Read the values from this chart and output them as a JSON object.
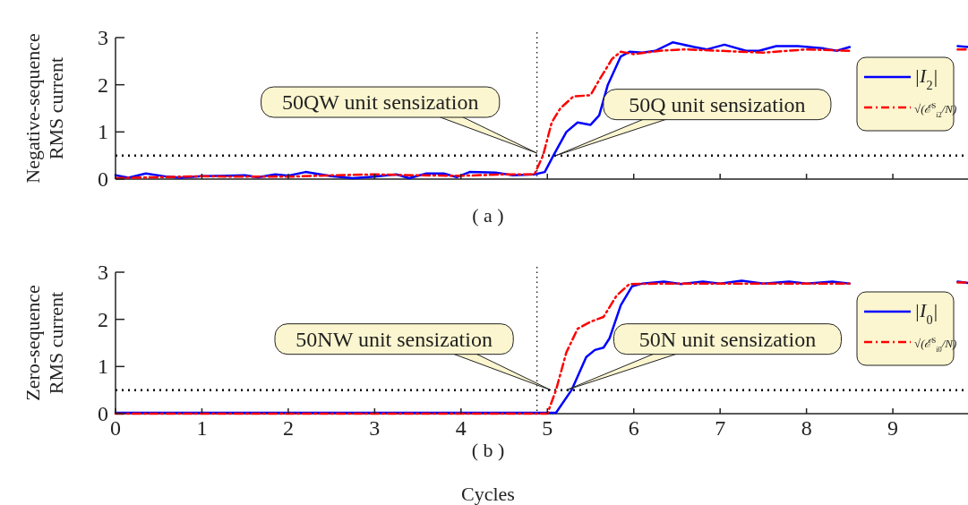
{
  "chart_data": [
    {
      "type": "line",
      "ylabel": "Negative-sequence RMS current",
      "xlim": [
        0,
        9.87
      ],
      "xticks": [
        {
          "value": 0,
          "label": null
        },
        {
          "value": 1,
          "label": null
        },
        {
          "value": 2,
          "label": null
        },
        {
          "value": 3,
          "label": null
        },
        {
          "value": 4,
          "label": null
        },
        {
          "value": 5,
          "label": null
        },
        {
          "value": 6,
          "label": null
        },
        {
          "value": 7,
          "label": null
        },
        {
          "value": 8,
          "label": null
        },
        {
          "value": 9,
          "label": null
        }
      ],
      "ylim": [
        0,
        3
      ],
      "yticks": [
        0,
        1,
        2,
        3
      ],
      "tick_labels": "y",
      "legend": "top right",
      "grid": false,
      "marker": "none",
      "series": [
        {
          "name": "|I$_{2}$|",
          "color": "#0000ff",
          "line_style": "solid",
          "x": [
            0,
            0.15,
            0.35,
            0.6,
            0.75,
            1.0,
            1.5,
            1.65,
            1.85,
            2.0,
            2.2,
            2.5,
            2.75,
            3.0,
            3.25,
            3.4,
            3.6,
            3.8,
            3.95,
            4.1,
            4.4,
            4.6,
            4.85,
            4.97,
            5.07,
            5.22,
            5.35,
            5.5,
            5.6,
            5.7,
            5.85,
            5.95,
            6.1,
            6.25,
            6.45,
            6.7,
            6.85,
            7.05,
            7.3,
            7.45,
            7.65,
            7.9,
            8.2,
            8.35,
            8.5,
            9.0,
            9.75,
            9.87
          ],
          "values": [
            0.08,
            0.03,
            0.12,
            0.05,
            0.03,
            0.06,
            0.08,
            0.04,
            0.1,
            0.07,
            0.15,
            0.06,
            0.02,
            0.05,
            0.1,
            0.02,
            0.12,
            0.12,
            0.04,
            0.15,
            0.14,
            0.08,
            0.1,
            0.15,
            0.5,
            1.0,
            1.2,
            1.15,
            1.35,
            2.0,
            2.6,
            2.7,
            2.68,
            2.72,
            2.9,
            2.8,
            2.75,
            2.85,
            2.72,
            2.72,
            2.82,
            2.82,
            2.77,
            2.72,
            2.8,
            null,
            2.82,
            2.8
          ]
        },
        {
          "name": "√(ℰ$^{S}$$_{i2}$/N)",
          "color": "#ff0000",
          "line_style": "dashed",
          "x": [
            0,
            0.5,
            1.0,
            1.5,
            2.0,
            2.5,
            3.0,
            3.5,
            4.0,
            4.5,
            4.85,
            4.95,
            5.05,
            5.15,
            5.3,
            5.5,
            5.6,
            5.75,
            5.85,
            6.0,
            6.3,
            6.6,
            7.0,
            7.5,
            8.0,
            8.5,
            9.0,
            9.75,
            9.87
          ],
          "values": [
            0.02,
            0.04,
            0.06,
            0.05,
            0.05,
            0.08,
            0.1,
            0.08,
            0.07,
            0.1,
            0.1,
            0.5,
            1.2,
            1.5,
            1.75,
            1.78,
            2.1,
            2.55,
            2.7,
            2.65,
            2.72,
            2.75,
            2.72,
            2.68,
            2.75,
            2.72,
            null,
            2.75,
            2.75
          ]
        }
      ],
      "ref_lines": [
        {
          "axis": "y",
          "value": 0.5,
          "color": "#000000",
          "line_style": "dotted"
        },
        {
          "axis": "x",
          "value": 4.88,
          "color": "#000000",
          "line_style": "dotted"
        }
      ],
      "annotations": [
        {
          "text": "50QW unit sensization",
          "x": 4.88,
          "y": 0.55
        },
        {
          "text": "50Q unit sensization",
          "x": 5.1,
          "y": 0.5
        },
        "( a )"
      ]
    },
    {
      "type": "line",
      "ylabel": "Zero-sequence RMS current",
      "xlabel": "Cycles",
      "xlim": [
        0,
        9.87
      ],
      "xticks": [
        0,
        1,
        2,
        3,
        4,
        5,
        6,
        7,
        8,
        9
      ],
      "ylim": [
        0,
        3
      ],
      "yticks": [
        0,
        1,
        2,
        3
      ],
      "legend": "top right",
      "grid": false,
      "marker": "none",
      "series": [
        {
          "name": "|I$_{0}$|",
          "color": "#0000ff",
          "line_style": "solid",
          "x": [
            0,
            1,
            2,
            3,
            4,
            5.1,
            5.28,
            5.45,
            5.55,
            5.65,
            5.72,
            5.85,
            5.98,
            6.1,
            6.35,
            6.55,
            6.8,
            7.0,
            7.25,
            7.5,
            7.8,
            8.0,
            8.3,
            8.5,
            9.0,
            9.75,
            9.87
          ],
          "values": [
            0.02,
            0.02,
            0.02,
            0.02,
            0.02,
            0.02,
            0.5,
            1.2,
            1.35,
            1.4,
            1.6,
            2.3,
            2.7,
            2.76,
            2.8,
            2.75,
            2.8,
            2.76,
            2.82,
            2.76,
            2.8,
            2.76,
            2.8,
            2.76,
            null,
            2.8,
            2.77
          ]
        },
        {
          "name": "√(ℰ$^{S}$$_{i0}$/N)",
          "color": "#ff0000",
          "line_style": "dashed",
          "x": [
            0,
            1,
            2,
            3,
            4,
            5.0,
            5.1,
            5.22,
            5.35,
            5.5,
            5.65,
            5.8,
            5.95,
            6.5,
            7.5,
            8.5,
            9.0,
            9.75,
            9.87
          ],
          "values": [
            0,
            0,
            0,
            0,
            0,
            0,
            0.5,
            1.3,
            1.8,
            1.95,
            2.05,
            2.5,
            2.75,
            2.76,
            2.76,
            2.76,
            null,
            2.78,
            2.78
          ]
        }
      ],
      "ref_lines": [
        {
          "axis": "y",
          "value": 0.5,
          "color": "#000000",
          "line_style": "dotted"
        },
        {
          "axis": "x",
          "value": 4.88,
          "color": "#000000",
          "line_style": "dotted"
        }
      ],
      "annotations": [
        {
          "text": "50NW unit sensization",
          "x": 5.04,
          "y": 0.5
        },
        {
          "text": "50N unit sensization",
          "x": 5.22,
          "y": 0.5
        },
        "( b )"
      ]
    }
  ]
}
